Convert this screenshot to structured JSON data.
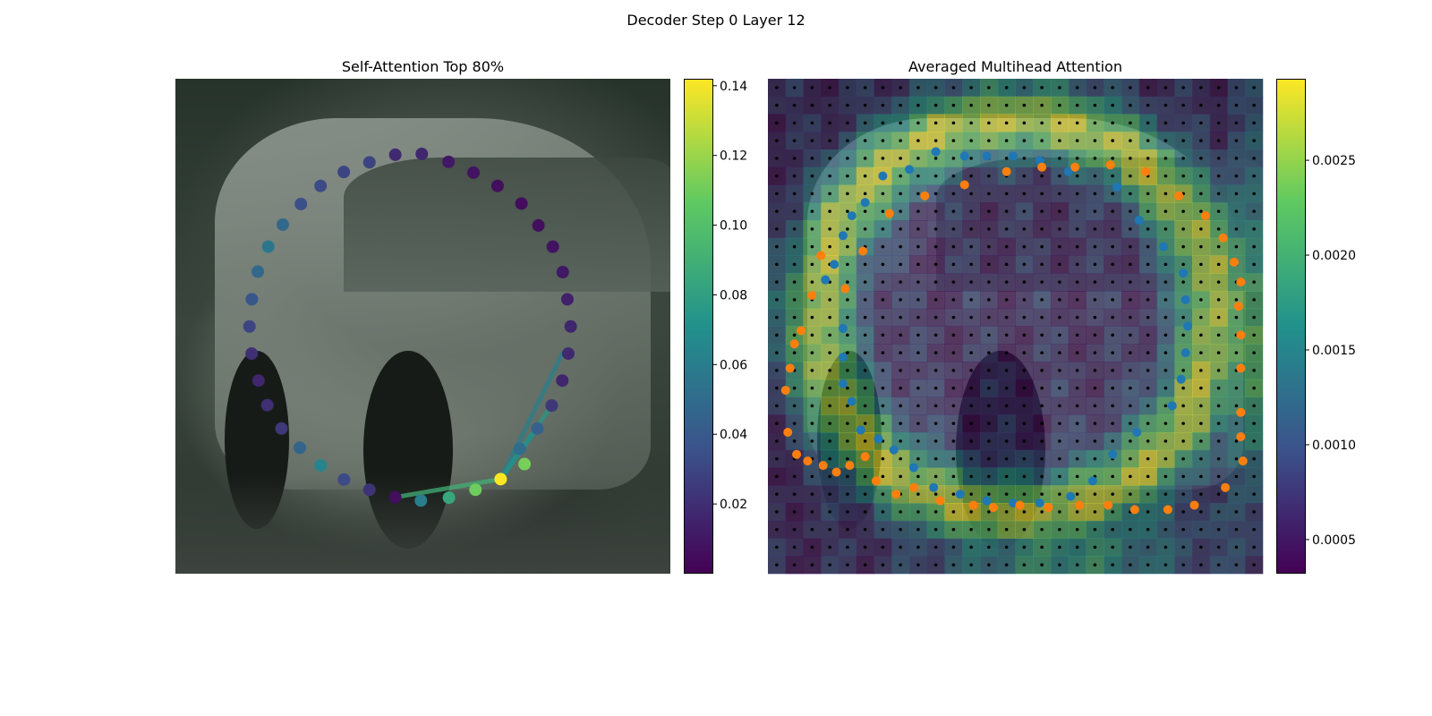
{
  "figure": {
    "title": "Decoder Step 0 Layer 12"
  },
  "colors": {
    "viridis_low": "#440154",
    "viridis_high": "#fde725",
    "blue_points": "#1f77b4",
    "orange_points": "#ff7f0e",
    "grid_dots": "#000000"
  },
  "chart_data": [
    {
      "type": "scatter",
      "title": "Self-Attention Top 80%",
      "background": "photo of a car",
      "xlabel": "",
      "ylabel": "",
      "xlim": [
        0,
        224
      ],
      "ylim": [
        224,
        0
      ],
      "grid": false,
      "colorbar": {
        "colormap": "viridis",
        "range": [
          0.0,
          0.142
        ],
        "ticks": [
          0.02,
          0.04,
          0.06,
          0.08,
          0.1,
          0.12,
          0.14
        ],
        "tick_labels": [
          "0.02",
          "0.04",
          "0.06",
          "0.08",
          "0.10",
          "0.12",
          "0.14"
        ]
      },
      "points": [
        {
          "x": 99.5,
          "y": 34.4,
          "v": 0.018
        },
        {
          "x": 111.5,
          "y": 34.0,
          "v": 0.017
        },
        {
          "x": 123.6,
          "y": 37.6,
          "v": 0.01
        },
        {
          "x": 134.9,
          "y": 42.5,
          "v": 0.008
        },
        {
          "x": 145.8,
          "y": 48.5,
          "v": 0.006
        },
        {
          "x": 156.6,
          "y": 56.5,
          "v": 0.005
        },
        {
          "x": 164.3,
          "y": 66.4,
          "v": 0.006
        },
        {
          "x": 170.8,
          "y": 76.0,
          "v": 0.008
        },
        {
          "x": 175.3,
          "y": 87.5,
          "v": 0.01
        },
        {
          "x": 177.4,
          "y": 99.8,
          "v": 0.014
        },
        {
          "x": 178.9,
          "y": 112.1,
          "v": 0.016
        },
        {
          "x": 177.8,
          "y": 124.4,
          "v": 0.018
        },
        {
          "x": 175.1,
          "y": 136.6,
          "v": 0.016
        },
        {
          "x": 170.3,
          "y": 147.9,
          "v": 0.024
        },
        {
          "x": 163.8,
          "y": 158.3,
          "v": 0.044
        },
        {
          "x": 155.8,
          "y": 167.5,
          "v": 0.05
        },
        {
          "x": 158.0,
          "y": 174.4,
          "v": 0.112
        },
        {
          "x": 147.2,
          "y": 181.2,
          "v": 0.142
        },
        {
          "x": 135.8,
          "y": 186.0,
          "v": 0.11
        },
        {
          "x": 123.8,
          "y": 189.6,
          "v": 0.084
        },
        {
          "x": 111.1,
          "y": 190.9,
          "v": 0.06
        },
        {
          "x": 99.5,
          "y": 189.4,
          "v": 0.006
        },
        {
          "x": 87.8,
          "y": 186.0,
          "v": 0.022
        },
        {
          "x": 76.3,
          "y": 181.4,
          "v": 0.032
        },
        {
          "x": 65.7,
          "y": 175.0,
          "v": 0.064
        },
        {
          "x": 56.3,
          "y": 167.0,
          "v": 0.046
        },
        {
          "x": 48.0,
          "y": 158.3,
          "v": 0.024
        },
        {
          "x": 41.6,
          "y": 147.7,
          "v": 0.02
        },
        {
          "x": 37.6,
          "y": 136.6,
          "v": 0.016
        },
        {
          "x": 34.5,
          "y": 124.4,
          "v": 0.02
        },
        {
          "x": 33.5,
          "y": 112.1,
          "v": 0.03
        },
        {
          "x": 34.6,
          "y": 99.8,
          "v": 0.038
        },
        {
          "x": 37.3,
          "y": 87.3,
          "v": 0.048
        },
        {
          "x": 42.0,
          "y": 76.0,
          "v": 0.056
        },
        {
          "x": 48.6,
          "y": 66.0,
          "v": 0.048
        },
        {
          "x": 56.8,
          "y": 56.7,
          "v": 0.034
        },
        {
          "x": 65.7,
          "y": 48.5,
          "v": 0.032
        },
        {
          "x": 76.2,
          "y": 42.2,
          "v": 0.03
        },
        {
          "x": 87.8,
          "y": 37.8,
          "v": 0.03
        }
      ],
      "attention_lines": [
        {
          "from": [
            147.2,
            181.2
          ],
          "to": [
            175.1,
            124.4
          ],
          "v": 0.06
        },
        {
          "from": [
            147.2,
            181.2
          ],
          "to": [
            99.5,
            189.4
          ],
          "v": 0.09
        },
        {
          "from": [
            147.2,
            181.2
          ],
          "to": [
            170.3,
            147.9
          ],
          "v": 0.075
        },
        {
          "from": [
            147.2,
            181.2
          ],
          "to": [
            163.8,
            158.3
          ],
          "v": 0.07
        }
      ]
    },
    {
      "type": "heatmap",
      "title": "Averaged Multihead Attention",
      "background": "photo of a car",
      "xlabel": "",
      "ylabel": "",
      "xlim": [
        0,
        224
      ],
      "ylim": [
        224,
        0
      ],
      "grid": false,
      "grid_size": 28,
      "colorbar": {
        "colormap": "viridis",
        "range": [
          0.00032,
          0.00293
        ],
        "ticks": [
          0.0005,
          0.001,
          0.0015,
          0.002,
          0.0025
        ],
        "tick_labels": [
          "0.0005",
          "0.0010",
          "0.0015",
          "0.0020",
          "0.0025"
        ]
      },
      "heatmap_values_description": "28x28 grid of attention weights, high values along car outline",
      "blue_points": [
        [
          26,
          91
        ],
        [
          30,
          84
        ],
        [
          34,
          71
        ],
        [
          38,
          62
        ],
        [
          44,
          56
        ],
        [
          52,
          44
        ],
        [
          64,
          41
        ],
        [
          76,
          33
        ],
        [
          89,
          35
        ],
        [
          99,
          35
        ],
        [
          111,
          35
        ],
        [
          123,
          37
        ],
        [
          136,
          42
        ],
        [
          158,
          49
        ],
        [
          168,
          64
        ],
        [
          179,
          76
        ],
        [
          188,
          88
        ],
        [
          189,
          100
        ],
        [
          190,
          112
        ],
        [
          189,
          124
        ],
        [
          187,
          136
        ],
        [
          183,
          148
        ],
        [
          167,
          160
        ],
        [
          156,
          170
        ],
        [
          147,
          182
        ],
        [
          137,
          189
        ],
        [
          123,
          192
        ],
        [
          111,
          192
        ],
        [
          99,
          191
        ],
        [
          87,
          188
        ],
        [
          75,
          185
        ],
        [
          66,
          176
        ],
        [
          57,
          168
        ],
        [
          50,
          163
        ],
        [
          42,
          159
        ],
        [
          38,
          146
        ],
        [
          34,
          138
        ],
        [
          34,
          126
        ],
        [
          34,
          113
        ]
      ],
      "orange_points": [
        [
          24,
          80
        ],
        [
          20,
          98
        ],
        [
          15,
          114
        ],
        [
          12,
          120
        ],
        [
          10,
          131
        ],
        [
          8,
          141
        ],
        [
          9,
          160
        ],
        [
          13,
          170
        ],
        [
          18,
          173
        ],
        [
          25,
          175
        ],
        [
          31,
          178
        ],
        [
          37,
          175
        ],
        [
          44,
          171
        ],
        [
          49,
          182
        ],
        [
          58,
          188
        ],
        [
          66,
          185
        ],
        [
          78,
          191
        ],
        [
          93,
          193
        ],
        [
          102,
          194
        ],
        [
          114,
          193
        ],
        [
          127,
          194
        ],
        [
          141,
          193
        ],
        [
          154,
          193
        ],
        [
          166,
          195
        ],
        [
          181,
          195
        ],
        [
          193,
          193
        ],
        [
          207,
          185
        ],
        [
          215,
          173
        ],
        [
          214,
          162
        ],
        [
          214,
          151
        ],
        [
          214,
          131
        ],
        [
          214,
          116
        ],
        [
          213,
          103
        ],
        [
          214,
          92
        ],
        [
          211,
          83
        ],
        [
          206,
          72
        ],
        [
          198,
          62
        ],
        [
          186,
          53
        ],
        [
          171,
          42
        ],
        [
          155,
          39
        ],
        [
          139,
          40
        ],
        [
          124,
          40
        ],
        [
          108,
          42
        ],
        [
          89,
          48
        ],
        [
          71,
          53
        ],
        [
          55,
          61
        ],
        [
          43,
          78
        ],
        [
          35,
          95
        ]
      ]
    }
  ]
}
